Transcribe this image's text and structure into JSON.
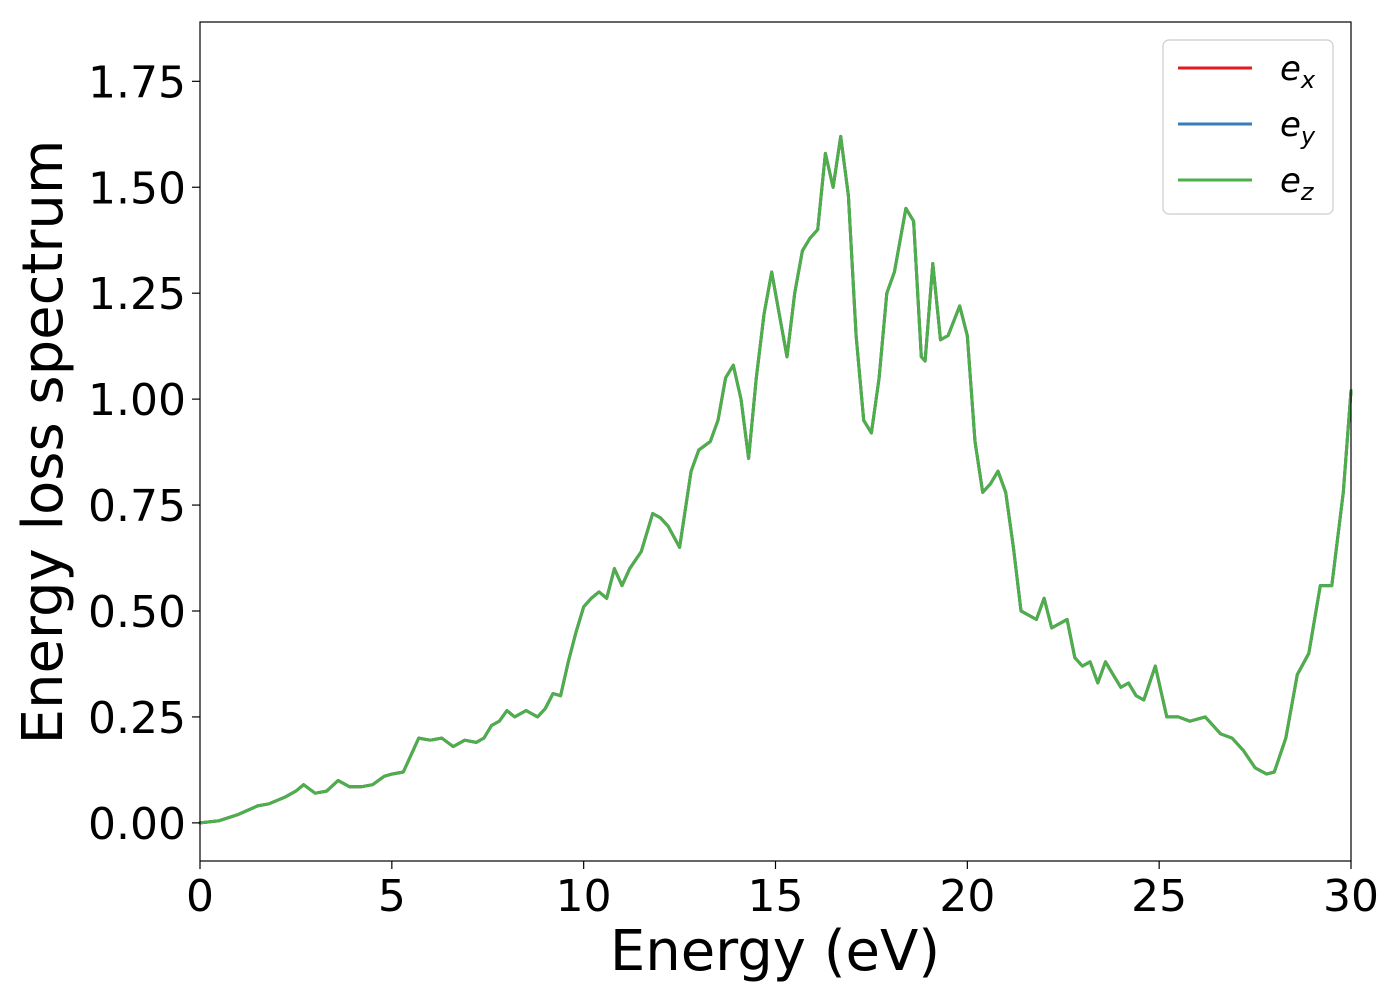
{
  "chart_data": {
    "type": "line",
    "title": "",
    "xlabel": "Energy (eV)",
    "ylabel": "Energy loss spectrum",
    "xlim": [
      0,
      30
    ],
    "ylim": [
      -0.09,
      1.89
    ],
    "xticks": [
      0,
      5,
      10,
      15,
      20,
      25,
      30
    ],
    "xtick_labels": [
      "0",
      "5",
      "10",
      "15",
      "20",
      "25",
      "30"
    ],
    "yticks": [
      0.0,
      0.25,
      0.5,
      0.75,
      1.0,
      1.25,
      1.5,
      1.75
    ],
    "ytick_labels": [
      "0.00",
      "0.25",
      "0.50",
      "0.75",
      "1.00",
      "1.25",
      "1.50",
      "1.75"
    ],
    "grid": false,
    "legend_position": "top-right",
    "x": [
      0,
      0.5,
      1,
      1.5,
      1.8,
      2.2,
      2.5,
      2.7,
      3,
      3.3,
      3.6,
      3.9,
      4.2,
      4.5,
      4.8,
      5,
      5.3,
      5.5,
      5.7,
      6,
      6.3,
      6.6,
      6.9,
      7.2,
      7.4,
      7.6,
      7.8,
      8,
      8.2,
      8.5,
      8.8,
      9,
      9.2,
      9.4,
      9.6,
      9.8,
      10,
      10.2,
      10.4,
      10.6,
      10.8,
      11,
      11.2,
      11.5,
      11.8,
      12,
      12.2,
      12.5,
      12.8,
      13,
      13.3,
      13.5,
      13.7,
      13.9,
      14.1,
      14.3,
      14.5,
      14.7,
      14.9,
      15.1,
      15.3,
      15.5,
      15.7,
      15.9,
      16.1,
      16.3,
      16.5,
      16.7,
      16.9,
      17.1,
      17.3,
      17.5,
      17.7,
      17.9,
      18.1,
      18.4,
      18.6,
      18.8,
      18.9,
      19.1,
      19.3,
      19.5,
      19.8,
      20,
      20.2,
      20.4,
      20.6,
      20.8,
      21,
      21.2,
      21.4,
      21.6,
      21.8,
      22,
      22.2,
      22.4,
      22.6,
      22.8,
      23,
      23.2,
      23.4,
      23.6,
      23.8,
      24,
      24.2,
      24.4,
      24.6,
      24.9,
      25.2,
      25.5,
      25.8,
      26.2,
      26.6,
      26.9,
      27.2,
      27.5,
      27.8,
      28,
      28.3,
      28.6,
      28.9,
      29.2,
      29.5,
      29.8,
      30
    ],
    "series": [
      {
        "name": "e_x",
        "color": "#e41a1c",
        "values": [
          0,
          0.005,
          0.02,
          0.04,
          0.045,
          0.06,
          0.075,
          0.09,
          0.07,
          0.075,
          0.1,
          0.085,
          0.085,
          0.09,
          0.11,
          0.115,
          0.12,
          0.16,
          0.2,
          0.195,
          0.2,
          0.18,
          0.195,
          0.19,
          0.2,
          0.23,
          0.24,
          0.265,
          0.25,
          0.265,
          0.25,
          0.27,
          0.305,
          0.3,
          0.38,
          0.45,
          0.51,
          0.53,
          0.545,
          0.53,
          0.6,
          0.56,
          0.6,
          0.64,
          0.73,
          0.72,
          0.7,
          0.65,
          0.83,
          0.88,
          0.9,
          0.95,
          1.05,
          1.08,
          1.0,
          0.86,
          1.05,
          1.2,
          1.3,
          1.2,
          1.1,
          1.25,
          1.35,
          1.38,
          1.4,
          1.58,
          1.5,
          1.62,
          1.48,
          1.15,
          0.95,
          0.92,
          1.05,
          1.25,
          1.3,
          1.45,
          1.42,
          1.1,
          1.09,
          1.32,
          1.14,
          1.15,
          1.22,
          1.15,
          0.9,
          0.78,
          0.8,
          0.83,
          0.78,
          0.65,
          0.5,
          0.49,
          0.48,
          0.53,
          0.46,
          0.47,
          0.48,
          0.39,
          0.37,
          0.38,
          0.33,
          0.38,
          0.35,
          0.32,
          0.33,
          0.3,
          0.29,
          0.37,
          0.25,
          0.25,
          0.24,
          0.25,
          0.21,
          0.2,
          0.17,
          0.13,
          0.115,
          0.12,
          0.2,
          0.35,
          0.4,
          0.56,
          0.56,
          0.78,
          1.02
        ]
      },
      {
        "name": "e_y",
        "color": "#377eb8",
        "values": [
          0,
          0.005,
          0.02,
          0.04,
          0.045,
          0.06,
          0.075,
          0.09,
          0.07,
          0.075,
          0.1,
          0.085,
          0.085,
          0.09,
          0.11,
          0.115,
          0.12,
          0.16,
          0.2,
          0.195,
          0.2,
          0.18,
          0.195,
          0.19,
          0.2,
          0.23,
          0.24,
          0.265,
          0.25,
          0.265,
          0.25,
          0.27,
          0.305,
          0.3,
          0.38,
          0.45,
          0.51,
          0.53,
          0.545,
          0.53,
          0.6,
          0.56,
          0.6,
          0.64,
          0.73,
          0.72,
          0.7,
          0.65,
          0.83,
          0.88,
          0.9,
          0.95,
          1.05,
          1.08,
          1.0,
          0.86,
          1.05,
          1.2,
          1.3,
          1.2,
          1.1,
          1.25,
          1.35,
          1.38,
          1.4,
          1.58,
          1.5,
          1.62,
          1.48,
          1.15,
          0.95,
          0.92,
          1.05,
          1.25,
          1.3,
          1.45,
          1.42,
          1.1,
          1.09,
          1.32,
          1.14,
          1.15,
          1.22,
          1.15,
          0.9,
          0.78,
          0.8,
          0.83,
          0.78,
          0.65,
          0.5,
          0.49,
          0.48,
          0.53,
          0.46,
          0.47,
          0.48,
          0.39,
          0.37,
          0.38,
          0.33,
          0.38,
          0.35,
          0.32,
          0.33,
          0.3,
          0.29,
          0.37,
          0.25,
          0.25,
          0.24,
          0.25,
          0.21,
          0.2,
          0.17,
          0.13,
          0.115,
          0.12,
          0.2,
          0.35,
          0.4,
          0.56,
          0.56,
          0.78,
          1.02
        ]
      },
      {
        "name": "e_z",
        "color": "#4daf4a",
        "values": [
          0,
          0.005,
          0.02,
          0.04,
          0.045,
          0.06,
          0.075,
          0.09,
          0.07,
          0.075,
          0.1,
          0.085,
          0.085,
          0.09,
          0.11,
          0.115,
          0.12,
          0.16,
          0.2,
          0.195,
          0.2,
          0.18,
          0.195,
          0.19,
          0.2,
          0.23,
          0.24,
          0.265,
          0.25,
          0.265,
          0.25,
          0.27,
          0.305,
          0.3,
          0.38,
          0.45,
          0.51,
          0.53,
          0.545,
          0.53,
          0.6,
          0.56,
          0.6,
          0.64,
          0.73,
          0.72,
          0.7,
          0.65,
          0.83,
          0.88,
          0.9,
          0.95,
          1.05,
          1.08,
          1.0,
          0.86,
          1.05,
          1.2,
          1.3,
          1.2,
          1.1,
          1.25,
          1.35,
          1.38,
          1.4,
          1.58,
          1.5,
          1.62,
          1.48,
          1.15,
          0.95,
          0.92,
          1.05,
          1.25,
          1.3,
          1.45,
          1.42,
          1.1,
          1.09,
          1.32,
          1.14,
          1.15,
          1.22,
          1.15,
          0.9,
          0.78,
          0.8,
          0.83,
          0.78,
          0.65,
          0.5,
          0.49,
          0.48,
          0.53,
          0.46,
          0.47,
          0.48,
          0.39,
          0.37,
          0.38,
          0.33,
          0.38,
          0.35,
          0.32,
          0.33,
          0.3,
          0.29,
          0.37,
          0.25,
          0.25,
          0.24,
          0.25,
          0.21,
          0.2,
          0.17,
          0.13,
          0.115,
          0.12,
          0.2,
          0.35,
          0.4,
          0.56,
          0.56,
          0.78,
          1.02
        ]
      }
    ],
    "legend": [
      {
        "base": "e",
        "sub": "x",
        "color": "#e41a1c"
      },
      {
        "base": "e",
        "sub": "y",
        "color": "#377eb8"
      },
      {
        "base": "e",
        "sub": "z",
        "color": "#4daf4a"
      }
    ]
  }
}
